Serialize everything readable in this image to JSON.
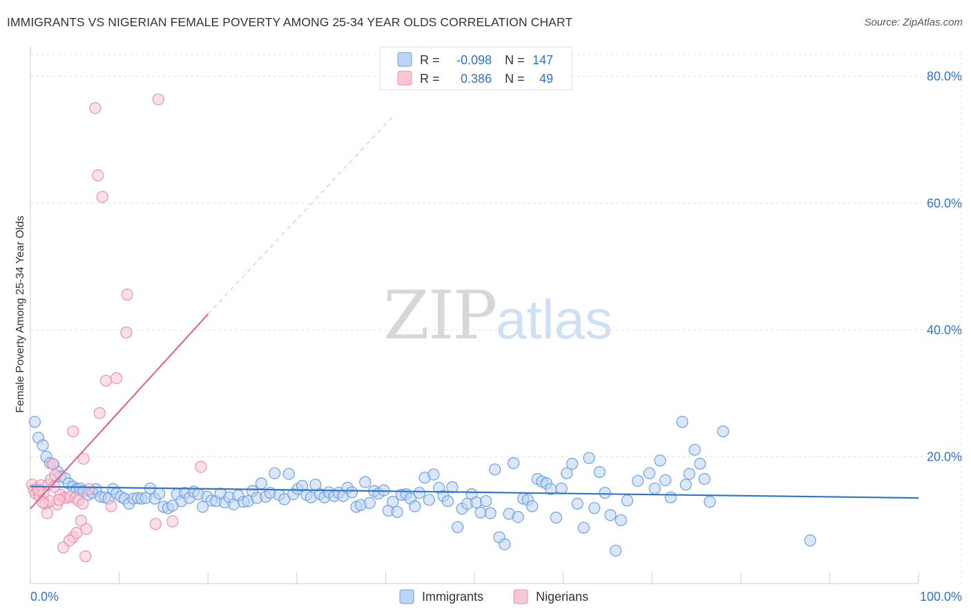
{
  "chart_data": {
    "type": "scatter",
    "title": "IMMIGRANTS VS NIGERIAN FEMALE POVERTY AMONG 25-34 YEAR OLDS CORRELATION CHART",
    "source": "Source: ZipAtlas.com",
    "ylabel": "Female Poverty Among 25-34 Year Olds",
    "xlabel": "",
    "xlim": [
      0,
      100
    ],
    "ylim": [
      0,
      84
    ],
    "x_tick_labels": [
      {
        "value": 0,
        "label": "0.0%"
      },
      {
        "value": 100,
        "label": "100.0%"
      }
    ],
    "y_tick_labels": [
      {
        "value": 20,
        "label": "20.0%"
      },
      {
        "value": 40,
        "label": "40.0%"
      },
      {
        "value": 60,
        "label": "60.0%"
      },
      {
        "value": 80,
        "label": "80.0%"
      }
    ],
    "watermark": {
      "part1": "ZIP",
      "part2": "atlas"
    },
    "legend_position": "top-center",
    "legend": [
      {
        "name": "Immigrants",
        "r_label": "R =",
        "r_value": "-0.098",
        "n_label": "N =",
        "n_value": "147"
      },
      {
        "name": "Nigerians",
        "r_label": "R =",
        "r_value": "0.386",
        "n_label": "N =",
        "n_value": "49"
      }
    ],
    "series": [
      {
        "name": "Immigrants",
        "color": "#6e9fe0",
        "fill": "#bcd4f5",
        "line_color": "#2e72d2",
        "trend": {
          "x1": 0,
          "y1": 15.3,
          "x2": 100,
          "y2": 13.5
        },
        "points": [
          [
            0.5,
            25.5
          ],
          [
            0.9,
            23
          ],
          [
            1.4,
            21.8
          ],
          [
            1.8,
            20
          ],
          [
            2.2,
            19
          ],
          [
            2.6,
            18.8
          ],
          [
            3.1,
            17.6
          ],
          [
            3.4,
            16.9
          ],
          [
            3.9,
            16.6
          ],
          [
            4.3,
            15.8
          ],
          [
            4.8,
            15.3
          ],
          [
            5.2,
            14.9
          ],
          [
            5.6,
            15
          ],
          [
            6,
            14.6
          ],
          [
            6.5,
            14
          ],
          [
            7,
            14.3
          ],
          [
            7.4,
            14.9
          ],
          [
            7.9,
            13.7
          ],
          [
            8.4,
            13.6
          ],
          [
            8.8,
            13.4
          ],
          [
            9.3,
            14.9
          ],
          [
            9.7,
            14.2
          ],
          [
            10.2,
            13.7
          ],
          [
            10.6,
            13.4
          ],
          [
            11.1,
            12.6
          ],
          [
            11.6,
            13.4
          ],
          [
            12.1,
            13.5
          ],
          [
            12.5,
            13.4
          ],
          [
            13,
            13.5
          ],
          [
            13.5,
            15
          ],
          [
            14,
            13.4
          ],
          [
            14.5,
            14.2
          ],
          [
            15,
            12.1
          ],
          [
            15.5,
            11.9
          ],
          [
            16,
            12.3
          ],
          [
            16.5,
            14.1
          ],
          [
            17,
            13
          ],
          [
            17.4,
            14.3
          ],
          [
            17.9,
            13.5
          ],
          [
            18.4,
            14.5
          ],
          [
            18.9,
            14.1
          ],
          [
            19.4,
            12.1
          ],
          [
            19.9,
            13.7
          ],
          [
            20.4,
            13.1
          ],
          [
            20.9,
            13
          ],
          [
            21.4,
            14.2
          ],
          [
            21.9,
            12.8
          ],
          [
            22.4,
            13.6
          ],
          [
            22.9,
            12.5
          ],
          [
            23.4,
            13.9
          ],
          [
            24,
            12.9
          ],
          [
            24.5,
            13
          ],
          [
            25,
            14.6
          ],
          [
            25.5,
            13.5
          ],
          [
            26,
            15.8
          ],
          [
            26.5,
            13.7
          ],
          [
            27,
            14.3
          ],
          [
            27.5,
            17.4
          ],
          [
            28,
            14
          ],
          [
            28.6,
            13.3
          ],
          [
            29.1,
            17.3
          ],
          [
            29.6,
            14.1
          ],
          [
            30.1,
            14.9
          ],
          [
            30.6,
            15.4
          ],
          [
            31.1,
            14
          ],
          [
            31.6,
            13.6
          ],
          [
            32.1,
            15.6
          ],
          [
            32.6,
            14.1
          ],
          [
            33.1,
            13.6
          ],
          [
            33.6,
            14.4
          ],
          [
            34.2,
            13.8
          ],
          [
            34.7,
            14.3
          ],
          [
            35.2,
            13.8
          ],
          [
            35.7,
            15.1
          ],
          [
            36.2,
            14.4
          ],
          [
            36.7,
            12.1
          ],
          [
            37.2,
            12.4
          ],
          [
            37.7,
            16
          ],
          [
            38.2,
            12.7
          ],
          [
            38.7,
            14.6
          ],
          [
            39.2,
            14.2
          ],
          [
            39.8,
            14.7
          ],
          [
            40.3,
            11.5
          ],
          [
            40.8,
            12.9
          ],
          [
            41.3,
            11.3
          ],
          [
            41.8,
            14
          ],
          [
            42.3,
            14.1
          ],
          [
            42.8,
            13.4
          ],
          [
            43.3,
            12.2
          ],
          [
            43.8,
            14.3
          ],
          [
            44.4,
            16.7
          ],
          [
            44.9,
            13.2
          ],
          [
            45.4,
            17.2
          ],
          [
            46,
            15.1
          ],
          [
            46.5,
            13.8
          ],
          [
            47,
            13
          ],
          [
            47.5,
            15.2
          ],
          [
            48.1,
            8.9
          ],
          [
            48.6,
            11.8
          ],
          [
            49.2,
            12.6
          ],
          [
            49.7,
            14.1
          ],
          [
            50.2,
            12.8
          ],
          [
            50.7,
            11.2
          ],
          [
            51.3,
            13
          ],
          [
            51.8,
            11.1
          ],
          [
            52.3,
            18
          ],
          [
            52.8,
            7.3
          ],
          [
            53.4,
            6.2
          ],
          [
            53.9,
            11
          ],
          [
            54.4,
            19
          ],
          [
            54.9,
            10.5
          ],
          [
            55.5,
            13.4
          ],
          [
            56,
            13.2
          ],
          [
            56.5,
            12.2
          ],
          [
            57.1,
            16.5
          ],
          [
            57.6,
            16.1
          ],
          [
            58.1,
            15.8
          ],
          [
            58.6,
            14.9
          ],
          [
            59.2,
            10.4
          ],
          [
            59.8,
            15
          ],
          [
            60.4,
            17.4
          ],
          [
            61,
            18.9
          ],
          [
            61.6,
            12.6
          ],
          [
            62.3,
            8.8
          ],
          [
            62.9,
            19.8
          ],
          [
            63.5,
            11.9
          ],
          [
            64.1,
            17.6
          ],
          [
            64.7,
            14.3
          ],
          [
            65.3,
            10.8
          ],
          [
            65.9,
            5.2
          ],
          [
            66.5,
            10
          ],
          [
            67.2,
            13.1
          ],
          [
            68.4,
            16.2
          ],
          [
            69.7,
            17.4
          ],
          [
            70.3,
            15
          ],
          [
            70.9,
            19.4
          ],
          [
            71.5,
            16.3
          ],
          [
            72.1,
            13.6
          ],
          [
            73.4,
            25.5
          ],
          [
            73.8,
            15.6
          ],
          [
            74.2,
            17.3
          ],
          [
            74.8,
            21.1
          ],
          [
            75.4,
            18.9
          ],
          [
            75.9,
            16.5
          ],
          [
            76.5,
            12.9
          ],
          [
            78,
            24
          ],
          [
            87.8,
            6.8
          ]
        ]
      },
      {
        "name": "Nigerians",
        "color": "#ea90ac",
        "fill": "#f9c6d6",
        "line_color": "#e06690",
        "trend": {
          "x1": 0,
          "y1": 11.8,
          "x2": 20,
          "y2": 42.5
        },
        "trend_dashed": {
          "x1": 20,
          "y1": 42.5,
          "x2": 41,
          "y2": 74
        },
        "points": [
          [
            0.2,
            15.6
          ],
          [
            0.4,
            14.8
          ],
          [
            0.6,
            14.2
          ],
          [
            0.8,
            15
          ],
          [
            1,
            13.8
          ],
          [
            1.2,
            15.5
          ],
          [
            1.5,
            14.2
          ],
          [
            1.7,
            12.6
          ],
          [
            2,
            15.6
          ],
          [
            2.3,
            16.4
          ],
          [
            2.5,
            18.9
          ],
          [
            2.8,
            17.1
          ],
          [
            3,
            12.5
          ],
          [
            3.4,
            14
          ],
          [
            3.8,
            13.6
          ],
          [
            4.1,
            13.5
          ],
          [
            4.5,
            13.7
          ],
          [
            4.8,
            24
          ],
          [
            5.1,
            13.5
          ],
          [
            5.4,
            13.1
          ],
          [
            5.7,
            9.9
          ],
          [
            6,
            19.7
          ],
          [
            6.3,
            8.6
          ],
          [
            6.6,
            14.9
          ],
          [
            7.3,
            75
          ],
          [
            7.6,
            64.4
          ],
          [
            7.8,
            26.9
          ],
          [
            8.1,
            61
          ],
          [
            8.5,
            32
          ],
          [
            9.1,
            12.2
          ],
          [
            9.7,
            32.4
          ],
          [
            10.9,
            45.6
          ],
          [
            10.8,
            39.6
          ],
          [
            14.4,
            76.4
          ],
          [
            14.1,
            9.4
          ],
          [
            16,
            9.8
          ],
          [
            19.2,
            18.4
          ],
          [
            1.9,
            11.1
          ],
          [
            2.2,
            13
          ],
          [
            4.8,
            7.3
          ],
          [
            5.2,
            8
          ],
          [
            3.7,
            5.7
          ],
          [
            6.2,
            4.3
          ],
          [
            4.4,
            6.8
          ],
          [
            0.9,
            14.7
          ],
          [
            1.4,
            12.8
          ],
          [
            2.7,
            15.3
          ],
          [
            3.2,
            13.2
          ],
          [
            5.9,
            12.6
          ]
        ]
      }
    ]
  }
}
